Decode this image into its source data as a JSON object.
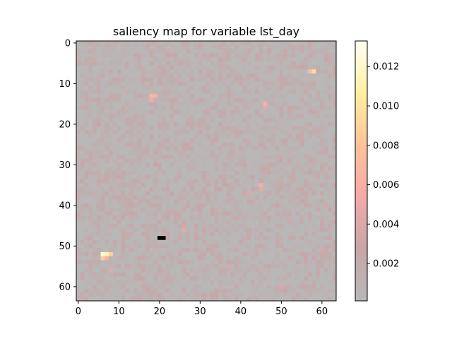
{
  "chart_data": {
    "type": "heatmap",
    "title": "saliency map for variable lst_day",
    "xlabel": "",
    "ylabel": "",
    "grid_size": [
      64,
      64
    ],
    "xlim": [
      -0.5,
      63.5
    ],
    "ylim": [
      63.5,
      -0.5
    ],
    "x_ticks": [
      0,
      10,
      20,
      30,
      40,
      50,
      60
    ],
    "y_ticks": [
      0,
      10,
      20,
      30,
      40,
      50,
      60
    ],
    "grid": false,
    "colormap": "gray-red-yellow-white overlay",
    "colormap_stops": [
      "#b8b8b8",
      "#c8a6a6",
      "#f4aaaa",
      "#ffc29a",
      "#fff0a0",
      "#fffff4"
    ],
    "background_color": "#b6b6b6",
    "colorbar": {
      "range": [
        0.0001,
        0.0133
      ],
      "ticks": [
        0.002,
        0.004,
        0.006,
        0.008,
        0.01,
        0.012
      ],
      "tick_labels": [
        "0.002",
        "0.004",
        "0.006",
        "0.008",
        "0.010",
        "0.012"
      ],
      "placement": "right"
    },
    "notable_cells": [
      {
        "row": 52,
        "col": 6,
        "value": 0.0125
      },
      {
        "row": 52,
        "col": 7,
        "value": 0.011
      },
      {
        "row": 52,
        "col": 8,
        "value": 0.009
      },
      {
        "row": 53,
        "col": 6,
        "value": 0.0085
      },
      {
        "row": 53,
        "col": 7,
        "value": 0.006
      },
      {
        "row": 7,
        "col": 58,
        "value": 0.0095
      },
      {
        "row": 7,
        "col": 57,
        "value": 0.007
      },
      {
        "row": 13,
        "col": 18,
        "value": 0.0065
      },
      {
        "row": 13,
        "col": 19,
        "value": 0.0062
      },
      {
        "row": 14,
        "col": 18,
        "value": 0.0055
      },
      {
        "row": 12,
        "col": 12,
        "value": 0.0035
      },
      {
        "row": 15,
        "col": 46,
        "value": 0.006
      },
      {
        "row": 16,
        "col": 46,
        "value": 0.0045
      },
      {
        "row": 35,
        "col": 45,
        "value": 0.0055
      },
      {
        "row": 36,
        "col": 45,
        "value": 0.0045
      },
      {
        "row": 37,
        "col": 42,
        "value": 0.004
      },
      {
        "row": 46,
        "col": 26,
        "value": 0.0045
      },
      {
        "row": 45,
        "col": 26,
        "value": 0.0035
      },
      {
        "row": 56,
        "col": 8,
        "value": 0.0045
      },
      {
        "row": 55,
        "col": 13,
        "value": 0.0035
      },
      {
        "row": 55,
        "col": 37,
        "value": 0.004
      },
      {
        "row": 60,
        "col": 50,
        "value": 0.0038
      },
      {
        "row": 51,
        "col": 60,
        "value": 0.0038
      },
      {
        "row": 40,
        "col": 61,
        "value": 0.0035
      },
      {
        "row": 3,
        "col": 22,
        "value": 0.003
      },
      {
        "row": 25,
        "col": 36,
        "value": 0.003
      },
      {
        "row": 30,
        "col": 19,
        "value": 0.0028
      },
      {
        "row": 44,
        "col": 52,
        "value": 0.0032
      },
      {
        "row": 20,
        "col": 5,
        "value": 0.0028
      },
      {
        "row": 9,
        "col": 33,
        "value": 0.003
      },
      {
        "row": 48,
        "col": 20,
        "value": 0.0,
        "color": "#000000"
      },
      {
        "row": 48,
        "col": 21,
        "value": 0.0,
        "color": "#000000"
      }
    ],
    "typical_value_range": [
      0.0001,
      0.0025
    ]
  }
}
